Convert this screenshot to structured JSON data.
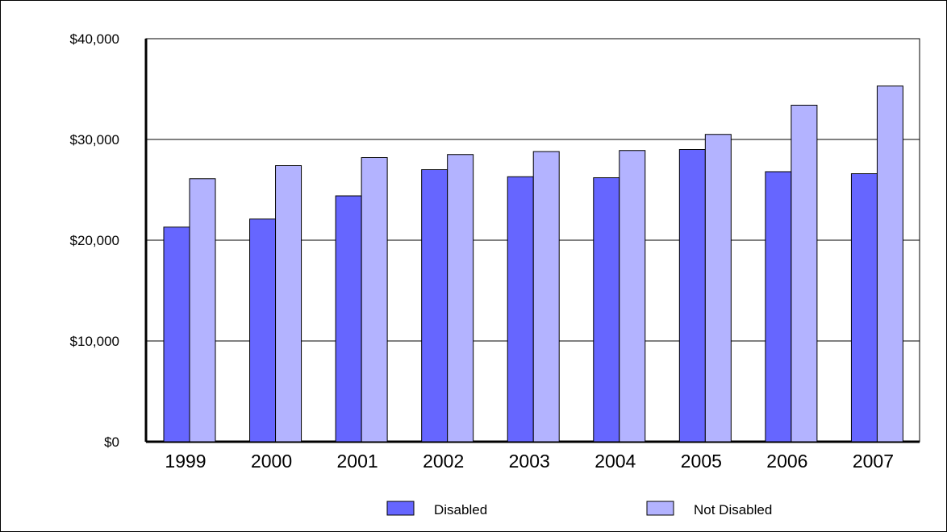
{
  "chart_data": {
    "type": "bar",
    "title": "",
    "xlabel": "",
    "ylabel": "",
    "categories": [
      "1999",
      "2000",
      "2001",
      "2002",
      "2003",
      "2004",
      "2005",
      "2006",
      "2007"
    ],
    "series": [
      {
        "name": "Disabled",
        "color": "#6666ff",
        "values": [
          21300,
          22100,
          24400,
          27000,
          26300,
          26200,
          29000,
          26800,
          26600
        ]
      },
      {
        "name": "Not Disabled",
        "color": "#b3b3ff",
        "values": [
          26100,
          27400,
          28200,
          28500,
          28800,
          28900,
          30500,
          33400,
          35300
        ]
      }
    ],
    "ylim": [
      0,
      40000
    ],
    "y_ticks": [
      0,
      10000,
      20000,
      30000,
      40000
    ],
    "y_tick_labels": [
      "$0",
      "$10,000",
      "$20,000",
      "$30,000",
      "$40,000"
    ],
    "grid": true,
    "legend_position": "bottom"
  }
}
